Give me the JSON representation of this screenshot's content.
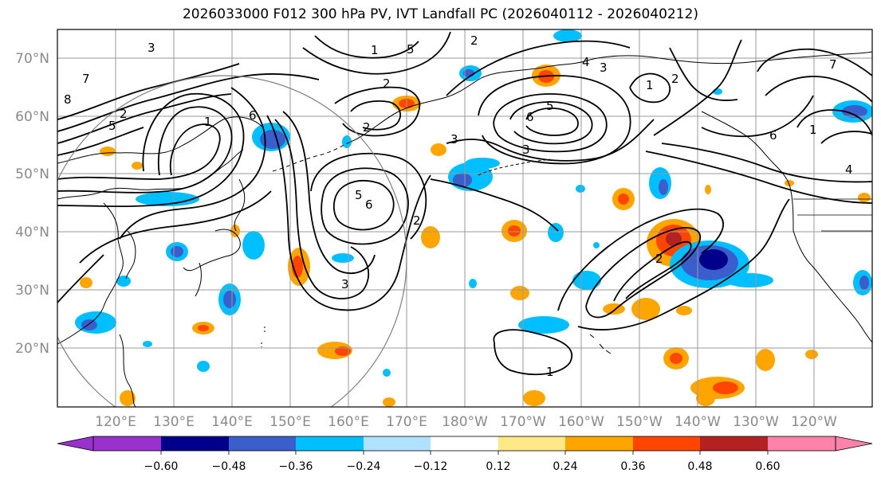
{
  "title": "2026033000 F012 300 hPa PV, IVT Landfall PC (2026040112 - 2026040212)",
  "map": {
    "lat_labels": [
      "70°N",
      "60°N",
      "50°N",
      "40°N",
      "30°N",
      "20°N"
    ],
    "lon_labels": [
      "120°E",
      "130°E",
      "140°E",
      "150°E",
      "160°E",
      "170°E",
      "180°W",
      "170°W",
      "160°W",
      "150°W",
      "140°W",
      "130°W",
      "120°W"
    ],
    "contour_labels": [
      "7",
      "3",
      "8",
      "2",
      "5",
      "1",
      "5",
      "2",
      "4",
      "3",
      "1",
      "2",
      "2",
      "5",
      "3",
      "6",
      "6",
      "1",
      "4",
      "2",
      "5",
      "6",
      "2",
      "3",
      "2",
      "1",
      "3",
      "6",
      "7",
      "1"
    ],
    "colors": {
      "coast": "#000000",
      "grid": "#9a9a9a",
      "contour": "#000000",
      "circle": "#7f7f7f"
    }
  },
  "colorbar": {
    "tick_labels": [
      "−0.60",
      "−0.48",
      "−0.36",
      "−0.24",
      "−0.12",
      "0.12",
      "0.24",
      "0.36",
      "0.48",
      "0.60"
    ],
    "colors": [
      "#9932cc",
      "#00008b",
      "#3a5fcd",
      "#00bfff",
      "#b0e2ff",
      "#ffffff",
      "#ffe987",
      "#ffa500",
      "#ff4500",
      "#b22222",
      "#ff82ab"
    ]
  }
}
